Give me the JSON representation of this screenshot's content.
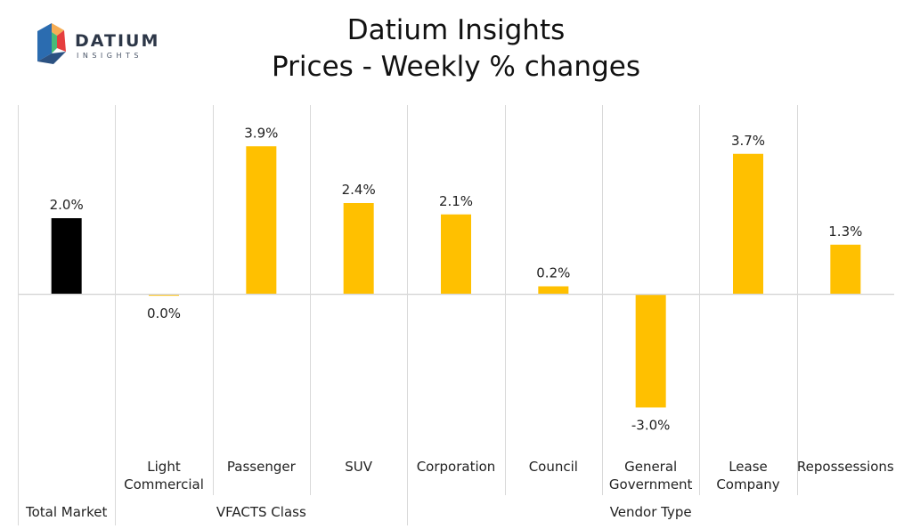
{
  "logo": {
    "name": "DATIUM",
    "sub": "INSIGHTS"
  },
  "header": {
    "title_line1": "Datium Insights",
    "title_line2": "Prices - Weekly % changes"
  },
  "colors": {
    "total": "#000000",
    "bar": "#FFC000",
    "grid": "#D9D9D9",
    "axis": "#D9D9D9"
  },
  "chart_data": {
    "type": "bar",
    "title": "Datium Insights Prices - Weekly % changes",
    "ylim": [
      -4.2,
      5.2
    ],
    "categories": [
      {
        "group": "Total Market",
        "lines": []
      },
      {
        "group": "VFACTS Class",
        "lines": [
          "Light",
          "Commercial"
        ]
      },
      {
        "group": "VFACTS Class",
        "lines": [
          "Passenger"
        ]
      },
      {
        "group": "VFACTS Class",
        "lines": [
          "SUV"
        ]
      },
      {
        "group": "Vendor Type",
        "lines": [
          "Corporation"
        ]
      },
      {
        "group": "Vendor Type",
        "lines": [
          "Council"
        ]
      },
      {
        "group": "Vendor Type",
        "lines": [
          "General",
          "Government"
        ]
      },
      {
        "group": "Vendor Type",
        "lines": [
          "Lease",
          "Company"
        ]
      },
      {
        "group": "Vendor Type",
        "lines": [
          "Repossessions"
        ]
      }
    ],
    "values": [
      2.0,
      -0.05,
      3.9,
      2.4,
      2.1,
      0.2,
      -3.0,
      3.7,
      1.3
    ],
    "data_labels": [
      "2.0%",
      "0.0%",
      "3.9%",
      "2.4%",
      "2.1%",
      "0.2%",
      "-3.0%",
      "3.7%",
      "1.3%"
    ],
    "groups": [
      {
        "label": "Total Market",
        "span": [
          0,
          0
        ]
      },
      {
        "label": "VFACTS Class",
        "span": [
          1,
          3
        ]
      },
      {
        "label": "Vendor Type",
        "span": [
          4,
          8
        ]
      }
    ]
  }
}
